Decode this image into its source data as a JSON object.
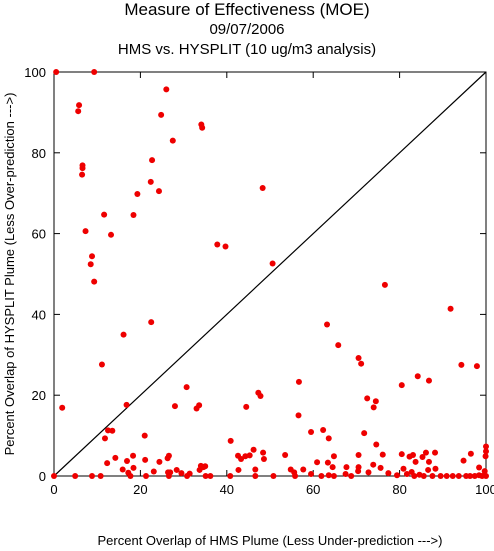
{
  "chart_data": {
    "type": "scatter",
    "title": "Measure of Effectiveness (MOE)",
    "date": "09/07/2006",
    "subtitle": "HMS vs. HYSPLIT  (10 ug/m3 analysis)",
    "xlabel": "Percent Overlap of HMS Plume (Less Under-prediction --->)",
    "ylabel": "Percent Overlap of HYSPLIT Plume (Less Over-prediction --->)",
    "xlim": [
      0,
      100
    ],
    "ylim": [
      0,
      100
    ],
    "x_ticks": [
      "0",
      "20",
      "40",
      "60",
      "80",
      "100"
    ],
    "y_ticks": [
      "0",
      "20",
      "40",
      "60",
      "80",
      "100"
    ],
    "diagonal_line": true,
    "grid": false,
    "marker_color": "#ee0000",
    "points": [
      [
        0.5,
        100
      ],
      [
        9.3,
        100
      ],
      [
        5.8,
        91.8
      ],
      [
        5.6,
        90.3
      ],
      [
        26,
        95.7
      ],
      [
        24.8,
        89.4
      ],
      [
        34.1,
        87
      ],
      [
        34.3,
        86.2
      ],
      [
        27.5,
        83
      ],
      [
        22.7,
        78.2
      ],
      [
        6.6,
        76.9
      ],
      [
        6.6,
        76.2
      ],
      [
        6.5,
        74.6
      ],
      [
        22.4,
        72.8
      ],
      [
        24.3,
        70.5
      ],
      [
        48.3,
        71.3
      ],
      [
        19.3,
        69.8
      ],
      [
        11.6,
        64.7
      ],
      [
        18.4,
        64.6
      ],
      [
        7.3,
        60.6
      ],
      [
        13.2,
        59.7
      ],
      [
        37.8,
        57.3
      ],
      [
        39.7,
        56.8
      ],
      [
        8.8,
        54.4
      ],
      [
        8.5,
        52.4
      ],
      [
        50.6,
        52.6
      ],
      [
        9.3,
        48.1
      ],
      [
        76.6,
        47.3
      ],
      [
        91.8,
        41.4
      ],
      [
        22.5,
        38.1
      ],
      [
        63.2,
        37.5
      ],
      [
        16.1,
        35
      ],
      [
        65.8,
        32.4
      ],
      [
        70.5,
        29.2
      ],
      [
        71.1,
        27.8
      ],
      [
        11.1,
        27.6
      ],
      [
        94.3,
        27.5
      ],
      [
        97.9,
        27.2
      ],
      [
        56.7,
        23.3
      ],
      [
        86.8,
        23.6
      ],
      [
        84.2,
        24.7
      ],
      [
        80.5,
        22.5
      ],
      [
        30.7,
        22
      ],
      [
        47.3,
        20.6
      ],
      [
        47.8,
        19.8
      ],
      [
        72.5,
        19.2
      ],
      [
        74.5,
        18.5
      ],
      [
        74,
        17
      ],
      [
        1.9,
        16.9
      ],
      [
        16.8,
        17.6
      ],
      [
        28,
        17.3
      ],
      [
        33.6,
        17.5
      ],
      [
        33,
        16.7
      ],
      [
        44.5,
        17.1
      ],
      [
        56.6,
        15
      ],
      [
        62.3,
        11.4
      ],
      [
        63.6,
        9.3
      ],
      [
        71.8,
        10.6
      ],
      [
        59.5,
        10.9
      ],
      [
        12.5,
        11.3
      ],
      [
        13.5,
        11.2
      ],
      [
        21,
        10
      ],
      [
        11.8,
        9.3
      ],
      [
        40.9,
        8.7
      ],
      [
        74.6,
        7.8
      ],
      [
        100,
        7.3
      ],
      [
        100,
        6.1
      ],
      [
        99.9,
        4.9
      ],
      [
        96.5,
        5.5
      ],
      [
        98.4,
        2.1
      ],
      [
        88.2,
        5.8
      ],
      [
        86.1,
        5.8
      ],
      [
        85.3,
        4.7
      ],
      [
        83.1,
        5.2
      ],
      [
        82.3,
        4.8
      ],
      [
        80.5,
        5.4
      ],
      [
        76.1,
        5.3
      ],
      [
        70.5,
        5.2
      ],
      [
        64.8,
        4.9
      ],
      [
        63.4,
        3.3
      ],
      [
        60.9,
        3.4
      ],
      [
        53.5,
        5.2
      ],
      [
        48.4,
        5.8
      ],
      [
        48.6,
        4.2
      ],
      [
        46.2,
        6.5
      ],
      [
        45.3,
        5.1
      ],
      [
        44.3,
        4.9
      ],
      [
        42.6,
        5
      ],
      [
        43.3,
        4.2
      ],
      [
        46.6,
        1.6
      ],
      [
        42.7,
        1.5
      ],
      [
        34.6,
        2.2
      ],
      [
        34,
        2.5
      ],
      [
        33.7,
        1.5
      ],
      [
        35,
        2.4
      ],
      [
        28.4,
        1.5
      ],
      [
        26.3,
        4.4
      ],
      [
        26.6,
        5
      ],
      [
        24.4,
        3.5
      ],
      [
        21.1,
        4
      ],
      [
        16.9,
        3.7
      ],
      [
        14.2,
        4.5
      ],
      [
        18.3,
        5
      ],
      [
        12.3,
        3.2
      ],
      [
        18.4,
        2
      ],
      [
        15.9,
        1.6
      ],
      [
        17.2,
        0.8
      ],
      [
        23.1,
        1.1
      ],
      [
        26.4,
        0.9
      ],
      [
        26.9,
        0.9
      ],
      [
        29.5,
        0.7
      ],
      [
        31.4,
        0.6
      ],
      [
        35.1,
        0
      ],
      [
        0,
        0
      ],
      [
        4.9,
        0
      ],
      [
        8.8,
        0
      ],
      [
        10.8,
        0
      ],
      [
        17.7,
        0
      ],
      [
        21.3,
        0
      ],
      [
        26.6,
        0
      ],
      [
        30.8,
        0
      ],
      [
        36.2,
        0
      ],
      [
        40.8,
        0
      ],
      [
        46.6,
        0
      ],
      [
        50.8,
        0
      ],
      [
        54.8,
        1.6
      ],
      [
        55.6,
        0.9
      ],
      [
        55.8,
        0
      ],
      [
        57.7,
        1.6
      ],
      [
        59.5,
        0.5
      ],
      [
        61.9,
        0
      ],
      [
        63.6,
        0.2
      ],
      [
        64.8,
        0
      ],
      [
        67.5,
        0.5
      ],
      [
        67.7,
        2.2
      ],
      [
        68.8,
        0
      ],
      [
        70.4,
        1.2
      ],
      [
        70.5,
        2.2
      ],
      [
        72.8,
        0.9
      ],
      [
        73.9,
        2.8
      ],
      [
        75.6,
        2
      ],
      [
        77.4,
        0.7
      ],
      [
        79.4,
        0.2
      ],
      [
        80.9,
        1.8
      ],
      [
        81.7,
        0.5
      ],
      [
        82.8,
        1
      ],
      [
        83.4,
        0
      ],
      [
        83.7,
        3.5
      ],
      [
        84.6,
        0.3
      ],
      [
        85.6,
        0
      ],
      [
        86.6,
        1.5
      ],
      [
        86.8,
        3.5
      ],
      [
        87.6,
        0
      ],
      [
        88.3,
        1.8
      ],
      [
        89.5,
        0
      ],
      [
        90.9,
        0
      ],
      [
        92.3,
        0
      ],
      [
        93.7,
        0
      ],
      [
        95.4,
        0
      ],
      [
        96.3,
        0
      ],
      [
        97.4,
        0
      ],
      [
        98.4,
        0.2
      ],
      [
        99.1,
        0
      ],
      [
        99.7,
        1.2
      ],
      [
        100,
        0
      ],
      [
        94.8,
        3.8
      ],
      [
        64.5,
        2.2
      ]
    ]
  }
}
